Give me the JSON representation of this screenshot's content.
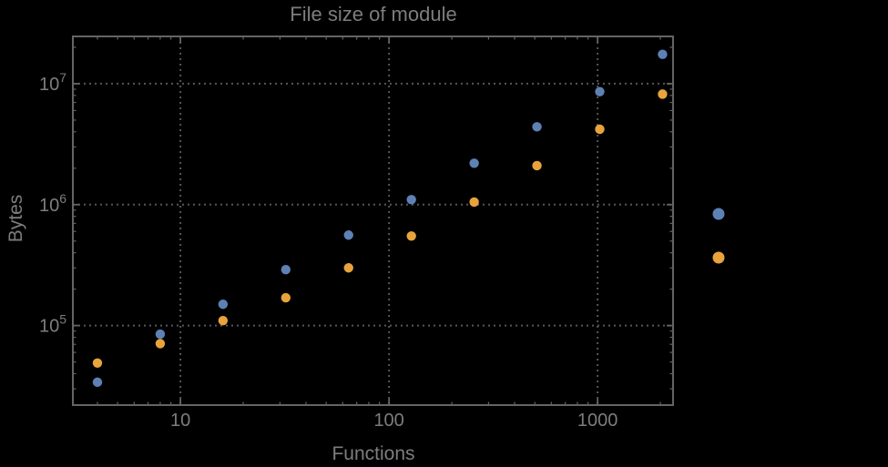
{
  "colors": {
    "background": "#000000",
    "frame": "#646464",
    "gridline": "#565656",
    "text": "#7D7D7D",
    "series_blue": "#5E81B5",
    "series_orange": "#E8A33C"
  },
  "chart_data": {
    "type": "scatter",
    "title": "File size of module",
    "xlabel": "Functions",
    "ylabel": "Bytes",
    "x_scale": "log",
    "y_scale": "log",
    "xlim": [
      3.05,
      2300
    ],
    "ylim": [
      22000,
      24600000
    ],
    "grid": "dotted gridlines at decades, both axes",
    "legend_position": "right-center, markers only (no visible labels)",
    "x": [
      4,
      8,
      16,
      32,
      64,
      128,
      256,
      512,
      1024,
      2048
    ],
    "series": [
      {
        "label": "",
        "color": "#5E81B5",
        "values": [
          34000,
          85000,
          150000,
          290000,
          560000,
          1100000,
          2200000,
          4400000,
          8600000,
          17500000
        ]
      },
      {
        "label": "",
        "color": "#E8A33C",
        "values": [
          49000,
          71000,
          110000,
          170000,
          300000,
          550000,
          1050000,
          2100000,
          4200000,
          8200000
        ]
      }
    ],
    "xaxis_ticks": {
      "values": [
        10,
        100,
        1000
      ],
      "labels": [
        "10",
        "100",
        "1000"
      ]
    },
    "yaxis_ticks": {
      "values": [
        100000,
        1000000,
        10000000
      ],
      "base": "10",
      "exponents": [
        "5",
        "6",
        "7"
      ]
    },
    "legend": {
      "markers": [
        {
          "color": "#5E81B5",
          "label": ""
        },
        {
          "color": "#E8A33C",
          "label": ""
        }
      ]
    }
  }
}
